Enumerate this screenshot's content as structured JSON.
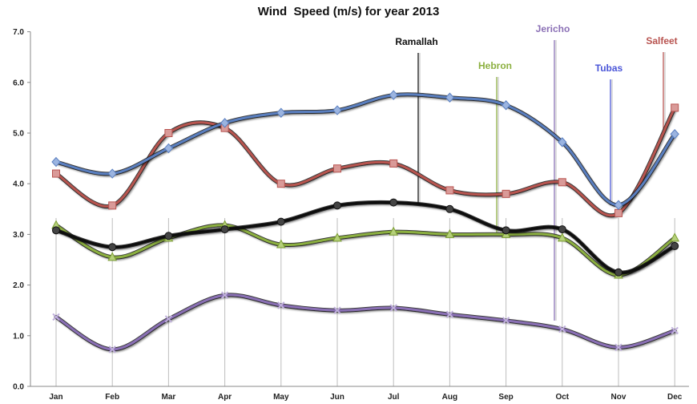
{
  "chart_data": {
    "type": "line",
    "title": "Wind  Speed (m/s) for year 2013",
    "xlabel": "",
    "ylabel": "",
    "categories": [
      "Jan",
      "Feb",
      "Mar",
      "Apr",
      "May",
      "Jun",
      "Jul",
      "Aug",
      "Sep",
      "Oct",
      "Nov",
      "Dec"
    ],
    "ylim": [
      0,
      7
    ],
    "yticks": [
      "0.0",
      "1.0",
      "2.0",
      "3.0",
      "4.0",
      "5.0",
      "6.0",
      "7.0"
    ],
    "grid": "vertical",
    "legend": "none",
    "series": [
      {
        "name": "Tubas",
        "color": "#5a7fc0",
        "marker": "diamond",
        "values": [
          4.43,
          4.2,
          4.7,
          5.2,
          5.4,
          5.45,
          5.75,
          5.7,
          5.55,
          4.82,
          3.58,
          4.98
        ]
      },
      {
        "name": "Salfeet",
        "color": "#b85450",
        "marker": "square",
        "values": [
          4.2,
          3.57,
          5.0,
          5.1,
          4.0,
          4.3,
          4.4,
          3.87,
          3.8,
          4.03,
          3.42,
          5.5
        ]
      },
      {
        "name": "Ramallah",
        "color": "#111111",
        "marker": "circle",
        "values": [
          3.08,
          2.75,
          2.97,
          3.1,
          3.25,
          3.57,
          3.63,
          3.5,
          3.08,
          3.1,
          2.25,
          2.77
        ]
      },
      {
        "name": "Hebron",
        "color": "#8cb040",
        "marker": "triangle",
        "values": [
          3.18,
          2.55,
          2.93,
          3.18,
          2.8,
          2.93,
          3.05,
          3.0,
          3.0,
          2.93,
          2.2,
          2.93
        ]
      },
      {
        "name": "Jericho",
        "color": "#8a6fb5",
        "marker": "x",
        "values": [
          1.37,
          0.73,
          1.33,
          1.8,
          1.6,
          1.5,
          1.55,
          1.42,
          1.3,
          1.13,
          0.77,
          1.1
        ]
      }
    ],
    "annotations": [
      {
        "series": "Ramallah",
        "text": "Ramallah",
        "color": "#111111",
        "at_category": "Aug"
      },
      {
        "series": "Hebron",
        "text": "Hebron",
        "color": "#8cb040",
        "at_category": "Sep"
      },
      {
        "series": "Jericho",
        "text": "Jericho",
        "color": "#8a6fb5",
        "at_category": "Oct"
      },
      {
        "series": "Tubas",
        "text": "Tubas",
        "color": "#4a55d8",
        "at_category": "Nov"
      },
      {
        "series": "Salfeet",
        "text": "Salfeet",
        "color": "#b85450",
        "at_category": "Dec"
      }
    ]
  }
}
